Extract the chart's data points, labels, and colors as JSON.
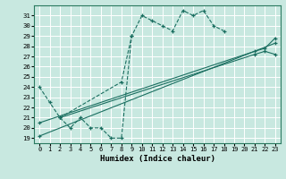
{
  "xlabel": "Humidex (Indice chaleur)",
  "bg_color": "#c8e8e0",
  "grid_color": "#ffffff",
  "line_color": "#1a6e60",
  "xlim": [
    -0.5,
    23.5
  ],
  "ylim": [
    18.5,
    32
  ],
  "xticks": [
    0,
    1,
    2,
    3,
    4,
    5,
    6,
    7,
    8,
    9,
    10,
    11,
    12,
    13,
    14,
    15,
    16,
    17,
    18,
    19,
    20,
    21,
    22,
    23
  ],
  "yticks": [
    19,
    20,
    21,
    22,
    23,
    24,
    25,
    26,
    27,
    28,
    29,
    30,
    31
  ],
  "series1_x": [
    0,
    1,
    2,
    3,
    4,
    5,
    6,
    7,
    8,
    9,
    10,
    11,
    12,
    13,
    14,
    15,
    16,
    17,
    18
  ],
  "series1_y": [
    24,
    22.5,
    21,
    20,
    21,
    20,
    20,
    19,
    19,
    29,
    31,
    30.5,
    30,
    29.5,
    31.5,
    31,
    31.5,
    30,
    29.5
  ],
  "series2_x": [
    2,
    8,
    9
  ],
  "series2_y": [
    21,
    24.5,
    29
  ],
  "series3_x": [
    0,
    23
  ],
  "series3_y": [
    19.2,
    28.3
  ],
  "series4_x": [
    0,
    21,
    22,
    23
  ],
  "series4_y": [
    20.5,
    27.5,
    27.8,
    28.8
  ],
  "series5_x": [
    2,
    21,
    22,
    23
  ],
  "series5_y": [
    21,
    27.2,
    27.5,
    27.2
  ]
}
